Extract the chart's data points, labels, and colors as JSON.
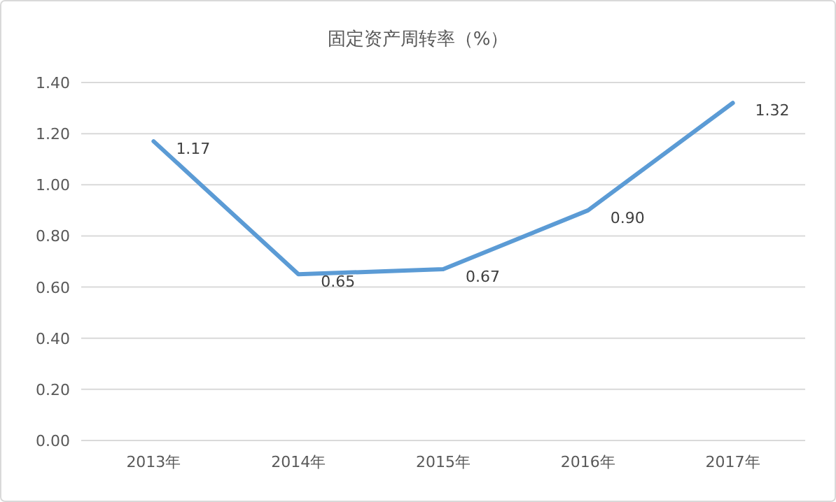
{
  "chart_data": {
    "type": "line",
    "title": "固定资产周转率（%）",
    "categories": [
      "2013年",
      "2014年",
      "2015年",
      "2016年",
      "2017年"
    ],
    "series": [
      {
        "color": "#5b9bd5",
        "values": [
          1.17,
          0.65,
          0.67,
          0.9,
          1.32
        ],
        "value_labels": [
          "1.17",
          "0.65",
          "0.67",
          "0.90",
          "1.32"
        ]
      }
    ],
    "ylim": [
      0,
      1.4
    ],
    "yticks": [
      {
        "value": 0,
        "label": "0.00"
      },
      {
        "value": 0.2,
        "label": "0.20"
      },
      {
        "value": 0.4,
        "label": "0.40"
      },
      {
        "value": 0.6,
        "label": "0.60"
      },
      {
        "value": 0.8,
        "label": "0.80"
      },
      {
        "value": 1.0,
        "label": "1.00"
      },
      {
        "value": 1.2,
        "label": "1.20"
      },
      {
        "value": 1.4,
        "label": "1.40"
      }
    ],
    "grid": "y",
    "marker": "none",
    "line_style": "solid"
  }
}
